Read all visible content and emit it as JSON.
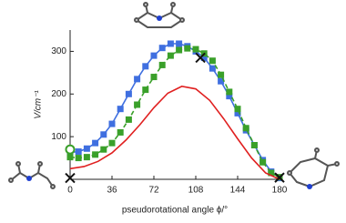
{
  "chart_data": {
    "type": "scatter",
    "x_label": "pseudorotational angle ϕ/°",
    "y_label": "V/cm⁻¹",
    "xlim": [
      0,
      180
    ],
    "xticks": [
      0,
      36,
      72,
      108,
      144,
      180
    ],
    "ylim": [
      0,
      350
    ],
    "yticks": [
      100,
      200,
      300
    ],
    "series": [
      {
        "color": "#3f6fe0",
        "marker": "square",
        "line": "solid",
        "x": [
          0,
          7.2,
          14.4,
          21.6,
          28.8,
          36,
          43.2,
          50.4,
          57.6,
          64.8,
          72,
          79.2,
          86.4,
          93.6,
          100.8,
          108,
          115.2,
          122.4,
          129.6,
          136.8,
          144,
          151.2,
          158.4,
          165.6,
          172.8,
          180
        ],
        "values": [
          63,
          65,
          72,
          85,
          105,
          130,
          165,
          200,
          235,
          265,
          290,
          308,
          318,
          318,
          312,
          300,
          285,
          260,
          230,
          195,
          155,
          115,
          80,
          45,
          18,
          3
        ]
      },
      {
        "color": "#3aa02a",
        "marker": "square",
        "line": "dashed",
        "x": [
          0,
          7.2,
          14.4,
          21.6,
          28.8,
          36,
          43.2,
          50.4,
          57.6,
          64.8,
          72,
          79.2,
          86.4,
          93.6,
          100.8,
          108,
          115.2,
          122.4,
          129.6,
          136.8,
          144,
          151.2,
          158.4,
          165.6,
          172.8,
          180
        ],
        "values": [
          52,
          50,
          52,
          58,
          70,
          85,
          110,
          140,
          175,
          210,
          240,
          268,
          290,
          303,
          307,
          305,
          295,
          278,
          245,
          205,
          165,
          120,
          80,
          40,
          15,
          5
        ]
      },
      {
        "color": "#e02020",
        "marker": "none",
        "line": "solid",
        "x": [
          0,
          12,
          24,
          36,
          48,
          60,
          72,
          84,
          96,
          108,
          120,
          132,
          144,
          156,
          168,
          180
        ],
        "values": [
          25,
          30,
          42,
          62,
          92,
          128,
          168,
          202,
          218,
          212,
          185,
          142,
          95,
          50,
          15,
          0
        ]
      },
      {
        "color": "#111111",
        "marker": "x",
        "line": "none",
        "x": [
          0,
          112,
          180
        ],
        "values": [
          3,
          285,
          4
        ]
      },
      {
        "color": "#3aa02a",
        "marker": "circle-open",
        "line": "none",
        "x": [
          0
        ],
        "values": [
          70
        ]
      }
    ]
  }
}
